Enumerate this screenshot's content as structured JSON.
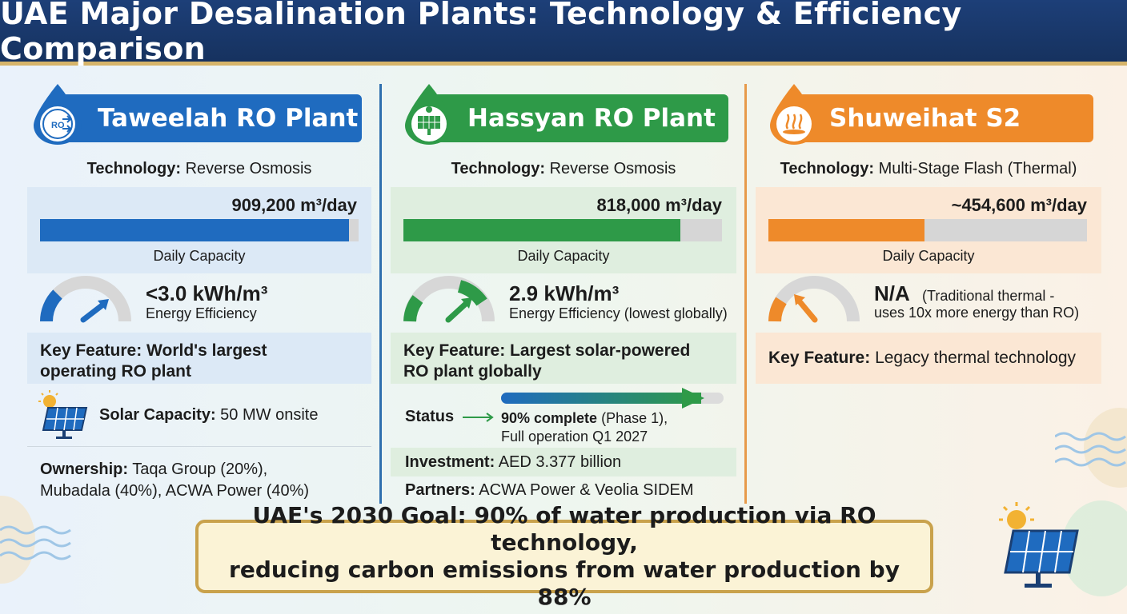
{
  "title": "UAE Major Desalination Plants: Technology & Efficiency Comparison",
  "colors": {
    "blue": "#1f6bbf",
    "green": "#2e9a48",
    "orange": "#ee8a2a",
    "navy": "#1d3f78",
    "gold": "#c9a24c"
  },
  "plants": [
    {
      "name": "Taweelah RO Plant",
      "icon": "ro-arrows-icon",
      "icon_text": "RO",
      "tech_label": "Technology:",
      "tech_value": "Reverse Osmosis",
      "capacity": "909,200 m³/day",
      "capacity_fraction": 0.97,
      "capacity_label": "Daily Capacity",
      "eff_value": "<3.0 kWh/m³",
      "eff_label": "Energy Efficiency",
      "key_label": "Key Feature: World's largest",
      "key_line2": "operating RO plant",
      "solar_label": "Solar Capacity:",
      "solar_value": "50 MW onsite",
      "owner_label": "Ownership:",
      "owner_line1": "Taqa Group (20%),",
      "owner_line2": "Mubadala (40%), ACWA Power (40%)"
    },
    {
      "name": "Hassyan RO Plant",
      "icon": "solar-panel-icon",
      "tech_label": "Technology:",
      "tech_value": "Reverse Osmosis",
      "capacity": "818,000 m³/day",
      "capacity_fraction": 0.87,
      "capacity_label": "Daily Capacity",
      "eff_value": "2.9 kWh/m³",
      "eff_label": "Energy Efficiency (lowest globally)",
      "key_label": "Key Feature: Largest solar-powered",
      "key_line2": "RO plant globally",
      "status_label": "Status",
      "status_progress": 0.9,
      "status_bold": "90% complete",
      "status_rest": "(Phase 1),",
      "status_line2": "Full operation Q1 2027",
      "invest_label": "Investment:",
      "invest_value": "AED 3.377 billion",
      "partners_label": "Partners:",
      "partners_value": "ACWA Power & Veolia SIDEM"
    },
    {
      "name": "Shuweihat S2",
      "icon": "steam-heat-icon",
      "tech_label": "Technology:",
      "tech_value": "Multi-Stage Flash (Thermal)",
      "capacity": "~454,600 m³/day",
      "capacity_fraction": 0.49,
      "capacity_label": "Daily Capacity",
      "eff_value": "N/A",
      "eff_note": "(Traditional thermal -",
      "eff_note2": "uses 10x more energy than RO)",
      "key_label": "Key Feature:",
      "key_value": "Legacy thermal technology"
    }
  ],
  "goal": {
    "line1": "UAE's 2030 Goal: 90% of water production via RO technology,",
    "line2": "reducing carbon emissions from water production by 88%"
  }
}
